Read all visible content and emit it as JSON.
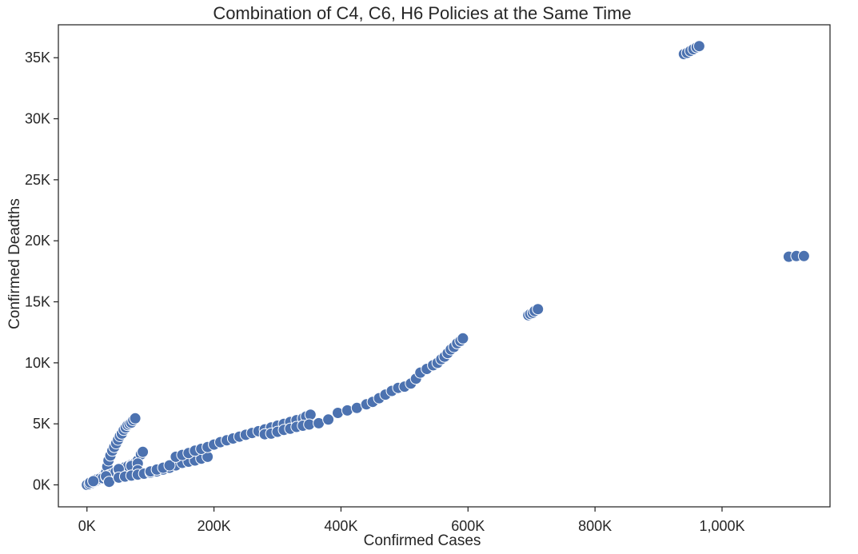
{
  "chart_data": {
    "type": "scatter",
    "title": "Combination of C4, C6, H6 Policies at the Same Time",
    "xlabel": "Confirmed Cases",
    "ylabel": "Confirmed Deadths",
    "xlim": [
      -45000,
      1170000
    ],
    "ylim": [
      -1800,
      37700
    ],
    "x_ticks": [
      0,
      200000,
      400000,
      600000,
      800000,
      1000000
    ],
    "x_tick_labels": [
      "0K",
      "200K",
      "400K",
      "600K",
      "800K",
      "1,000K"
    ],
    "y_ticks": [
      0,
      5000,
      10000,
      15000,
      20000,
      25000,
      30000,
      35000
    ],
    "y_tick_labels": [
      "0K",
      "5K",
      "10K",
      "15K",
      "20K",
      "25K",
      "30K",
      "35K"
    ],
    "grid": false,
    "colors": {
      "point": "#4c72b0",
      "point_edge": "#ffffff",
      "axes": "#262626"
    },
    "series": [
      {
        "points": [
          [
            0,
            0
          ],
          [
            4000,
            60
          ],
          [
            8000,
            150
          ],
          [
            12000,
            250
          ],
          [
            15000,
            350
          ],
          [
            20000,
            500
          ],
          [
            25000,
            700
          ],
          [
            30000,
            1000
          ],
          [
            32000,
            1500
          ],
          [
            34000,
            2000
          ],
          [
            37000,
            2400
          ],
          [
            40000,
            2800
          ],
          [
            43000,
            3100
          ],
          [
            46000,
            3400
          ],
          [
            49000,
            3700
          ],
          [
            52000,
            4000
          ],
          [
            55000,
            4200
          ],
          [
            58000,
            4500
          ],
          [
            61000,
            4700
          ],
          [
            64000,
            4900
          ],
          [
            67000,
            5000
          ],
          [
            70000,
            5100
          ],
          [
            73000,
            5300
          ],
          [
            76000,
            5450
          ],
          [
            5000,
            200
          ],
          [
            10000,
            350
          ],
          [
            15000,
            450
          ],
          [
            20000,
            500
          ],
          [
            25000,
            550
          ],
          [
            30000,
            650
          ],
          [
            35000,
            800
          ],
          [
            40000,
            900
          ],
          [
            45000,
            1050
          ],
          [
            50000,
            1200
          ],
          [
            55000,
            1300
          ],
          [
            60000,
            1450
          ],
          [
            65000,
            1550
          ],
          [
            70000,
            1650
          ],
          [
            75000,
            1750
          ],
          [
            80000,
            2000
          ],
          [
            85000,
            2500
          ],
          [
            88000,
            2700
          ],
          [
            10000,
            300
          ],
          [
            30000,
            700
          ],
          [
            35000,
            250
          ],
          [
            50000,
            600
          ],
          [
            50000,
            1300
          ],
          [
            70000,
            1550
          ],
          [
            80000,
            1750
          ],
          [
            80000,
            1200
          ],
          [
            50000,
            600
          ],
          [
            60000,
            680
          ],
          [
            70000,
            760
          ],
          [
            80000,
            840
          ],
          [
            90000,
            920
          ],
          [
            100000,
            1000
          ],
          [
            110000,
            1100
          ],
          [
            120000,
            1250
          ],
          [
            130000,
            1400
          ],
          [
            140000,
            1600
          ],
          [
            150000,
            1800
          ],
          [
            160000,
            1900
          ],
          [
            170000,
            2000
          ],
          [
            180000,
            2150
          ],
          [
            190000,
            2300
          ],
          [
            100000,
            1100
          ],
          [
            110000,
            1250
          ],
          [
            120000,
            1400
          ],
          [
            130000,
            1600
          ],
          [
            140000,
            2300
          ],
          [
            150000,
            2450
          ],
          [
            160000,
            2600
          ],
          [
            170000,
            2800
          ],
          [
            180000,
            2950
          ],
          [
            190000,
            3100
          ],
          [
            200000,
            3300
          ],
          [
            210000,
            3500
          ],
          [
            220000,
            3650
          ],
          [
            230000,
            3800
          ],
          [
            240000,
            3950
          ],
          [
            250000,
            4100
          ],
          [
            260000,
            4250
          ],
          [
            270000,
            4400
          ],
          [
            280000,
            4550
          ],
          [
            290000,
            4700
          ],
          [
            300000,
            4850
          ],
          [
            310000,
            5000
          ],
          [
            320000,
            5150
          ],
          [
            330000,
            5300
          ],
          [
            340000,
            5450
          ],
          [
            345000,
            5600
          ],
          [
            352000,
            5750
          ],
          [
            280000,
            4150
          ],
          [
            290000,
            4200
          ],
          [
            300000,
            4350
          ],
          [
            310000,
            4500
          ],
          [
            320000,
            4600
          ],
          [
            330000,
            4750
          ],
          [
            340000,
            4850
          ],
          [
            350000,
            4950
          ],
          [
            365000,
            5050
          ],
          [
            380000,
            5350
          ],
          [
            395000,
            5900
          ],
          [
            410000,
            6100
          ],
          [
            425000,
            6300
          ],
          [
            440000,
            6600
          ],
          [
            450000,
            6800
          ],
          [
            460000,
            7100
          ],
          [
            470000,
            7400
          ],
          [
            480000,
            7700
          ],
          [
            490000,
            7950
          ],
          [
            500000,
            8050
          ],
          [
            510000,
            8300
          ],
          [
            518000,
            8700
          ],
          [
            525000,
            9200
          ],
          [
            535000,
            9500
          ],
          [
            545000,
            9800
          ],
          [
            552000,
            10000
          ],
          [
            558000,
            10300
          ],
          [
            563000,
            10500
          ],
          [
            568000,
            10800
          ],
          [
            573000,
            11100
          ],
          [
            578000,
            11300
          ],
          [
            583000,
            11600
          ],
          [
            588000,
            11800
          ],
          [
            592000,
            12000
          ],
          [
            695000,
            13900
          ],
          [
            698000,
            14000
          ],
          [
            702000,
            14100
          ],
          [
            705000,
            14250
          ],
          [
            710000,
            14400
          ],
          [
            940000,
            35300
          ],
          [
            945000,
            35400
          ],
          [
            950000,
            35550
          ],
          [
            955000,
            35700
          ],
          [
            960000,
            35850
          ],
          [
            964000,
            35950
          ],
          [
            1105000,
            18700
          ],
          [
            1117000,
            18750
          ],
          [
            1129000,
            18750
          ]
        ]
      }
    ]
  }
}
